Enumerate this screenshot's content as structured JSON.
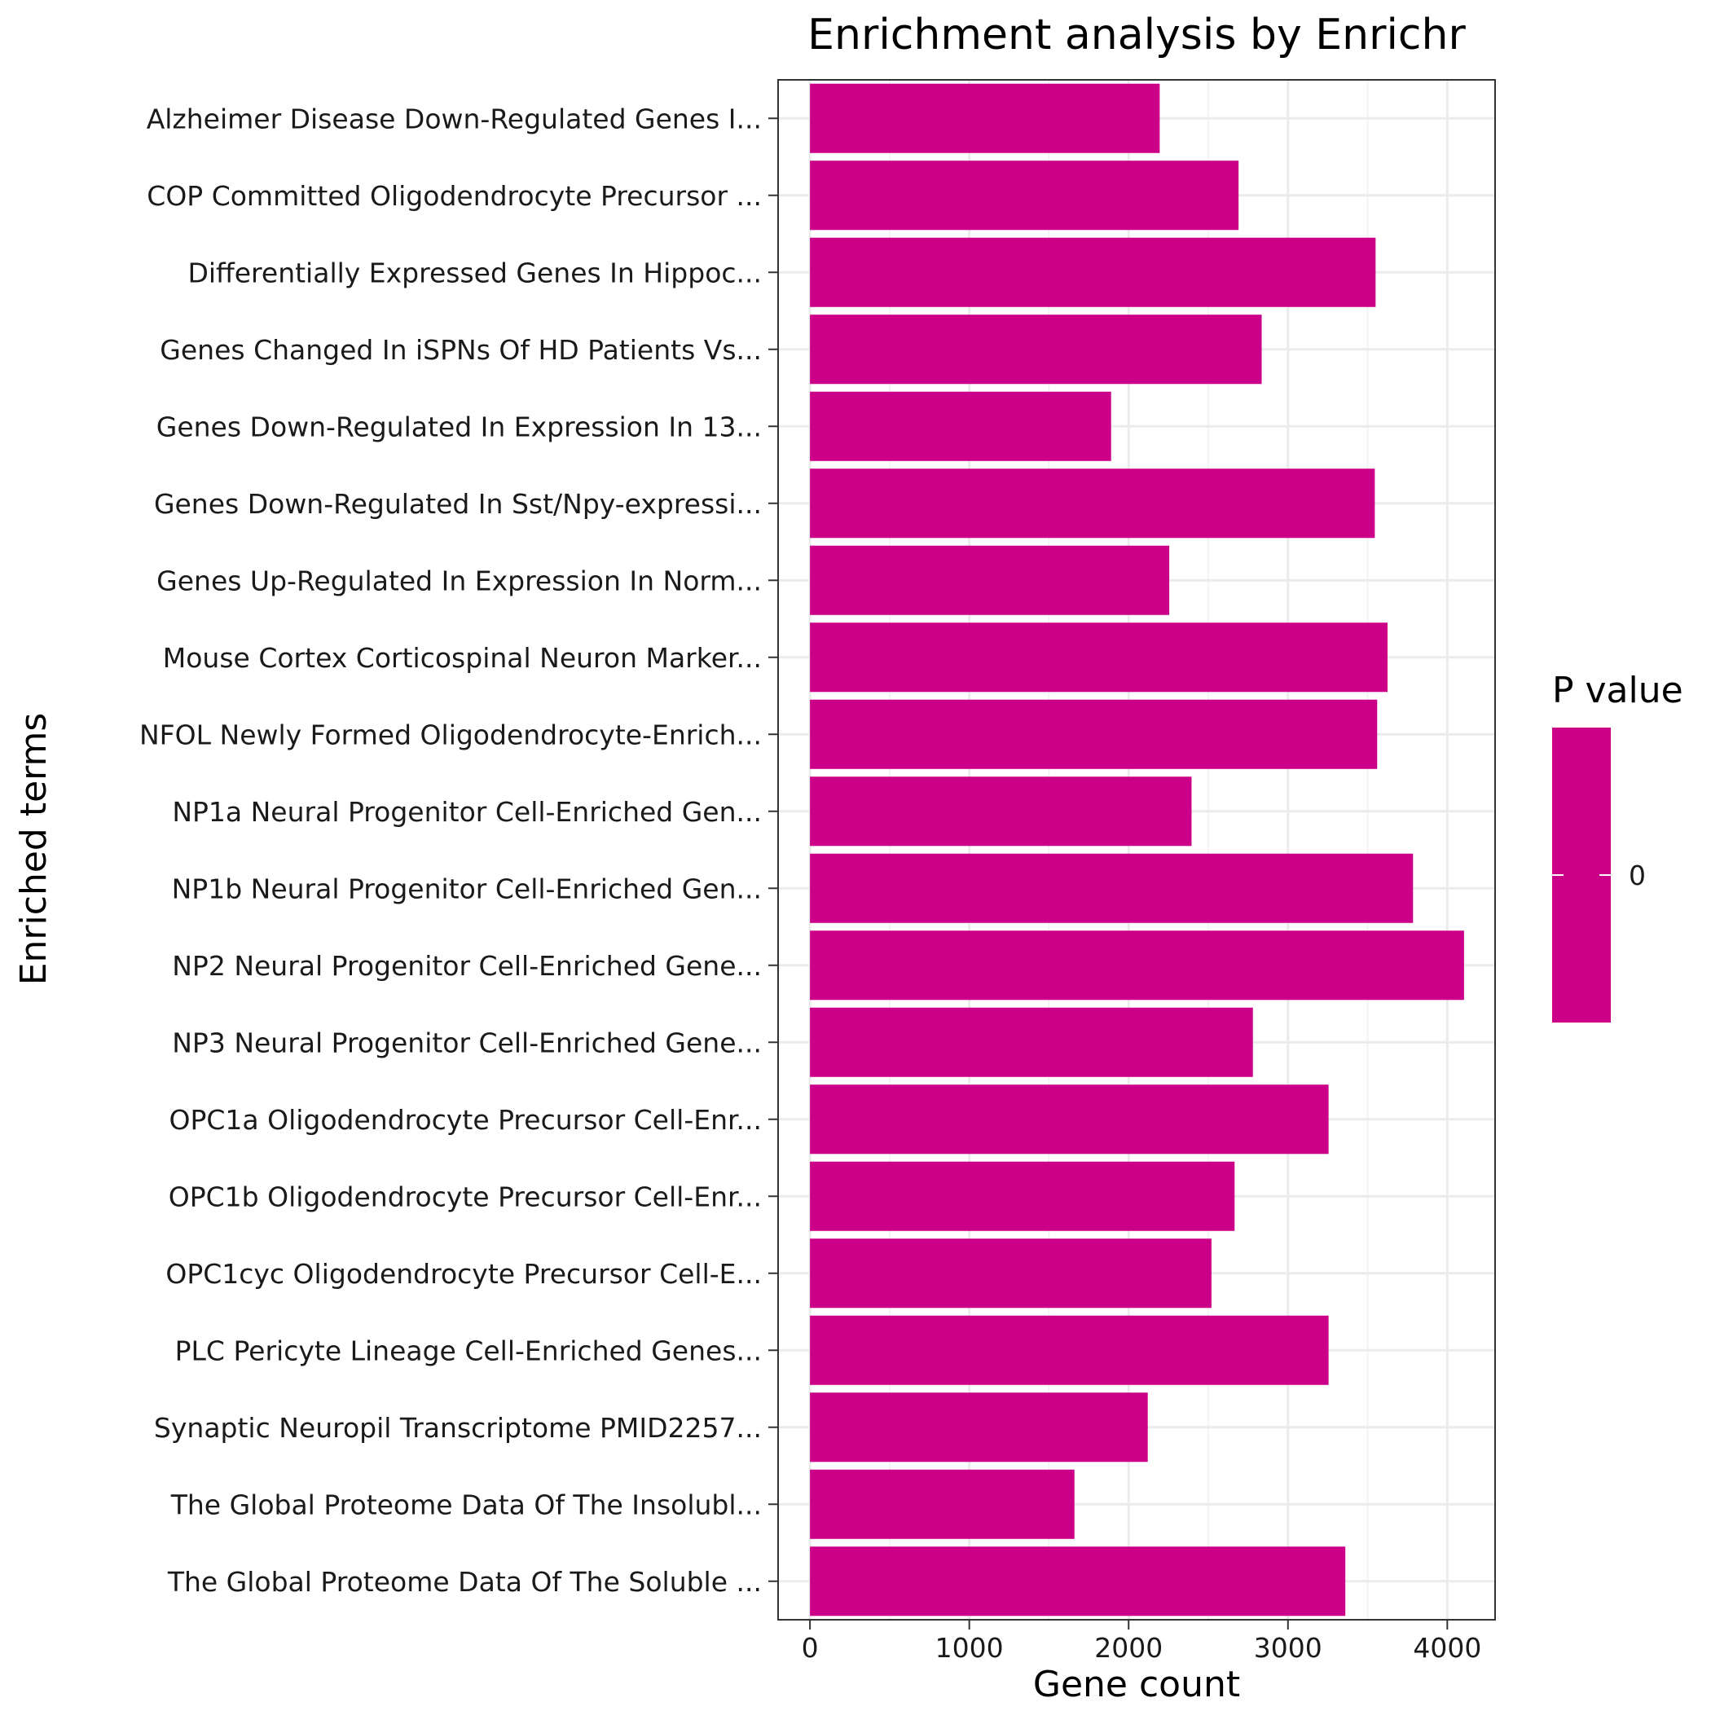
{
  "chart_data": {
    "type": "bar",
    "orientation": "horizontal",
    "title": "Enrichment analysis by Enrichr",
    "xlabel": "Gene count",
    "ylabel": "Enriched terms",
    "xlim": [
      -200,
      4300
    ],
    "xticks": [
      0,
      1000,
      2000,
      3000,
      4000
    ],
    "grid": true,
    "bar_color": "#CC0088",
    "categories": [
      "Alzheimer Disease Down-Regulated Genes I...",
      "COP Committed Oligodendrocyte Precursor ...",
      "Differentially Expressed Genes In Hippoc...",
      "Genes Changed In iSPNs Of HD Patients Vs...",
      "Genes Down-Regulated In Expression In 13...",
      "Genes Down-Regulated In Sst/Npy-expressi...",
      "Genes Up-Regulated In Expression In Norm...",
      "Mouse Cortex Corticospinal Neuron Marker...",
      "NFOL Newly Formed Oligodendrocyte-Enrich...",
      "NP1a Neural Progenitor Cell-Enriched Gen...",
      "NP1b Neural Progenitor Cell-Enriched Gen...",
      "NP2 Neural Progenitor Cell-Enriched Gene...",
      "NP3 Neural Progenitor Cell-Enriched Gene...",
      "OPC1a Oligodendrocyte Precursor Cell-Enr...",
      "OPC1b Oligodendrocyte Precursor Cell-Enr...",
      "OPC1cyc Oligodendrocyte Precursor Cell-E...",
      "PLC Pericyte Lineage Cell-Enriched Genes...",
      "Synaptic Neuropil Transcriptome PMID2257...",
      "The Global Proteome Data Of The Insolubl...",
      "The Global Proteome Data Of The Soluble ..."
    ],
    "values": [
      2195,
      2690,
      3550,
      2835,
      1890,
      3545,
      2255,
      3625,
      3560,
      2395,
      3785,
      4105,
      2780,
      3255,
      2665,
      2520,
      3255,
      2120,
      1660,
      3360
    ],
    "legend": {
      "title": "P value",
      "position": "right",
      "tick_label": "0",
      "color": "#CC0088"
    }
  }
}
